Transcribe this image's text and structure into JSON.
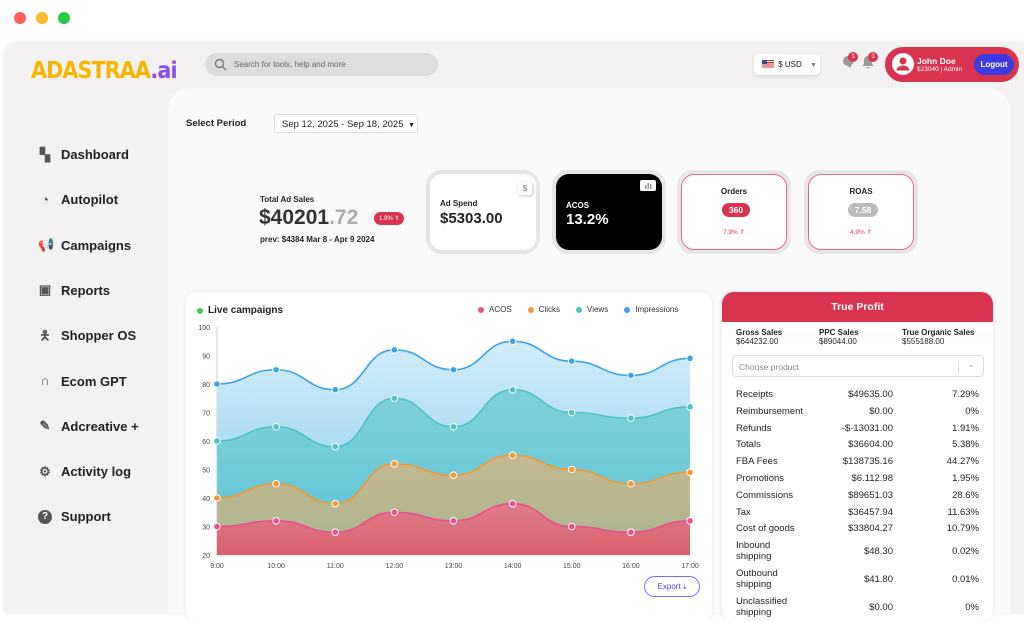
{
  "window": {
    "dots": [
      "#fe5f57",
      "#febc2e",
      "#28c840"
    ]
  },
  "brand": {
    "logo_main": "ADASTRAA",
    "logo_suffix": ".ai"
  },
  "search": {
    "placeholder": "Search for tools, help and more"
  },
  "currency": {
    "label": "$ USD"
  },
  "notifications": {
    "messages_count": "3",
    "alerts_count": "3"
  },
  "user": {
    "name": "John Doe",
    "meta": "$23040 | Admin",
    "logout": "Logout"
  },
  "sidebar": {
    "items": [
      {
        "label": "Dashboard",
        "icon": "dashboard-icon"
      },
      {
        "label": "Autopilot",
        "icon": "gauge-icon"
      },
      {
        "label": "Campaigns",
        "icon": "megaphone-icon"
      },
      {
        "label": "Reports",
        "icon": "report-icon"
      },
      {
        "label": "Shopper OS",
        "icon": "person-icon"
      },
      {
        "label": "Ecom GPT",
        "icon": "headset-icon"
      },
      {
        "label": "Adcreative +",
        "icon": "magic-icon"
      },
      {
        "label": "Activity log",
        "icon": "gear-icon"
      },
      {
        "label": "Support",
        "icon": "help-icon"
      }
    ]
  },
  "period": {
    "label": "Select Period",
    "value": "Sep 12, 2025 - Sep 18, 2025"
  },
  "kpi": {
    "total": {
      "label": "Total Ad Sales",
      "main": "$40201",
      "cents": ".72",
      "badge": "1.9% ⇑",
      "prev": "prev: $4384 Mar 8 - Apr 9 2024"
    },
    "ad_spend": {
      "label": "Ad Spend",
      "value": "$5303.00",
      "icon": "$"
    },
    "acos": {
      "label": "ACOS",
      "value": "13.2%"
    },
    "orders": {
      "label": "Orders",
      "value": "360",
      "change": "7.9% ⇑"
    },
    "roas": {
      "label": "ROAS",
      "value": "7.58",
      "change": "4.9% ⇑"
    }
  },
  "chart_data": {
    "type": "area",
    "title": "Live campaigns",
    "x": [
      "9:00",
      "10:00",
      "11:00",
      "12:00",
      "13:00",
      "14:00",
      "15:00",
      "16:00",
      "17:00"
    ],
    "ylim": [
      20,
      100
    ],
    "yticks": [
      20,
      30,
      40,
      50,
      60,
      70,
      80,
      90,
      100
    ],
    "legend_position": "top-right",
    "series": [
      {
        "name": "ACOS",
        "color": "#e8508a",
        "values": [
          30,
          32,
          28,
          35,
          32,
          38,
          30,
          28,
          32
        ]
      },
      {
        "name": "Clicks",
        "color": "#f59a2f",
        "values": [
          40,
          45,
          38,
          52,
          48,
          55,
          50,
          45,
          49
        ]
      },
      {
        "name": "Views",
        "color": "#4cc3c0",
        "values": [
          60,
          65,
          58,
          75,
          65,
          78,
          70,
          68,
          72
        ]
      },
      {
        "name": "Impressions",
        "color": "#3ba3e8",
        "values": [
          80,
          85,
          78,
          92,
          85,
          95,
          88,
          83,
          89
        ]
      }
    ]
  },
  "export": {
    "label": "Export"
  },
  "true_profit": {
    "title": "True Profit",
    "summary": [
      {
        "label": "Gross Sales",
        "value": "$644232.00"
      },
      {
        "label": "PPC Sales",
        "value": "$89044.00"
      },
      {
        "label": "True Organic Sales",
        "value": "$555188.00"
      }
    ],
    "product_placeholder": "Choose product",
    "rows": [
      {
        "label": "Receipts",
        "value": "$49635.00",
        "pct": "7.29%"
      },
      {
        "label": "Reimbursement",
        "value": "$0.00",
        "pct": "0%"
      },
      {
        "label": "Refunds",
        "value": "-$-13031.00",
        "pct": "1.91%"
      },
      {
        "label": "Totals",
        "value": "$36604.00",
        "pct": "5.38%"
      },
      {
        "label": "FBA Fees",
        "value": "$138735.16",
        "pct": "44.27%"
      },
      {
        "label": "Promotions",
        "value": "$6.112.98",
        "pct": "1.95%"
      },
      {
        "label": "Commissions",
        "value": "$89651.03",
        "pct": "28.6%"
      },
      {
        "label": "Tax",
        "value": "$36457.94",
        "pct": "11.63%"
      },
      {
        "label": "Cost of goods",
        "value": "$33804.27",
        "pct": "10.79%"
      },
      {
        "label": "Inbound shipping",
        "value": "$48.30",
        "pct": "0.02%"
      },
      {
        "label": "Outbound shipping",
        "value": "$41.80",
        "pct": "0.01%"
      },
      {
        "label": "Unclassified shipping",
        "value": "$0.00",
        "pct": "0%"
      }
    ]
  }
}
